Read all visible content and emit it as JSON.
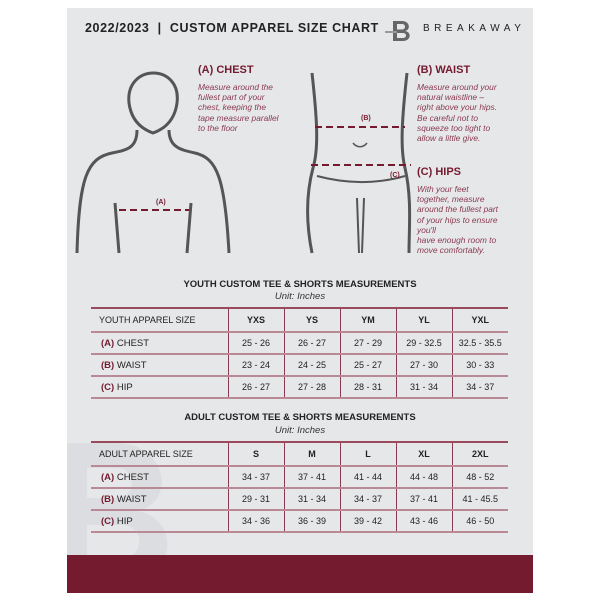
{
  "header": {
    "title": "2022/2023  |  CUSTOM APPAREL SIZE CHART",
    "brand": "BREAKAWAY",
    "logo_letter": "B"
  },
  "measures": {
    "chest": {
      "heading": "(A) CHEST",
      "desc": [
        "Measure around the",
        "fullest part of your",
        "chest, keeping the",
        "tape measure parallel",
        "to the floor"
      ],
      "marker": "(A)"
    },
    "waist": {
      "heading": "(B) WAIST",
      "desc": [
        "Measure around your",
        "natural waistline –",
        "right above your hips.",
        "Be careful not to",
        "squeeze too tight to",
        "allow a little give."
      ],
      "marker": "(B)"
    },
    "hips": {
      "heading": "(C) HIPS",
      "desc": [
        "With your feet",
        "together, measure",
        "around the fullest part",
        "of your hips to ensure",
        "you'll",
        "have enough room to",
        "move comfortably."
      ],
      "marker": "(C)"
    }
  },
  "youth": {
    "title": "YOUTH CUSTOM TEE & SHORTS MEASUREMENTS",
    "unit": "Unit: Inches",
    "header": [
      "YOUTH APPAREL SIZE",
      "YXS",
      "YS",
      "YM",
      "YL",
      "YXL"
    ],
    "rows": [
      {
        "code": "(A)",
        "label": "CHEST",
        "values": [
          "25 - 26",
          "26 - 27",
          "27 - 29",
          "29 - 32.5",
          "32.5 - 35.5"
        ]
      },
      {
        "code": "(B)",
        "label": "WAIST",
        "values": [
          "23 - 24",
          "24 - 25",
          "25 - 27",
          "27 - 30",
          "30 - 33"
        ]
      },
      {
        "code": "(C)",
        "label": "HIP",
        "values": [
          "26 - 27",
          "27 - 28",
          "28 - 31",
          "31 - 34",
          "34 - 37"
        ]
      }
    ]
  },
  "adult": {
    "title": "ADULT CUSTOM TEE & SHORTS MEASUREMENTS",
    "unit": "Unit: Inches",
    "header": [
      "ADULT APPAREL SIZE",
      "S",
      "M",
      "L",
      "XL",
      "2XL"
    ],
    "rows": [
      {
        "code": "(A)",
        "label": "CHEST",
        "values": [
          "34 - 37",
          "37 - 41",
          "41 - 44",
          "44 - 48",
          "48 - 52"
        ]
      },
      {
        "code": "(B)",
        "label": "WAIST",
        "values": [
          "29 - 31",
          "31 - 34",
          "34 - 37",
          "37 - 41",
          "41 - 45.5"
        ]
      },
      {
        "code": "(C)",
        "label": "HIP",
        "values": [
          "34 - 36",
          "36 - 39",
          "39 - 42",
          "43 - 46",
          "46 - 50"
        ]
      }
    ]
  },
  "colors": {
    "accent": "#741b30",
    "background": "#e6e7e9"
  }
}
